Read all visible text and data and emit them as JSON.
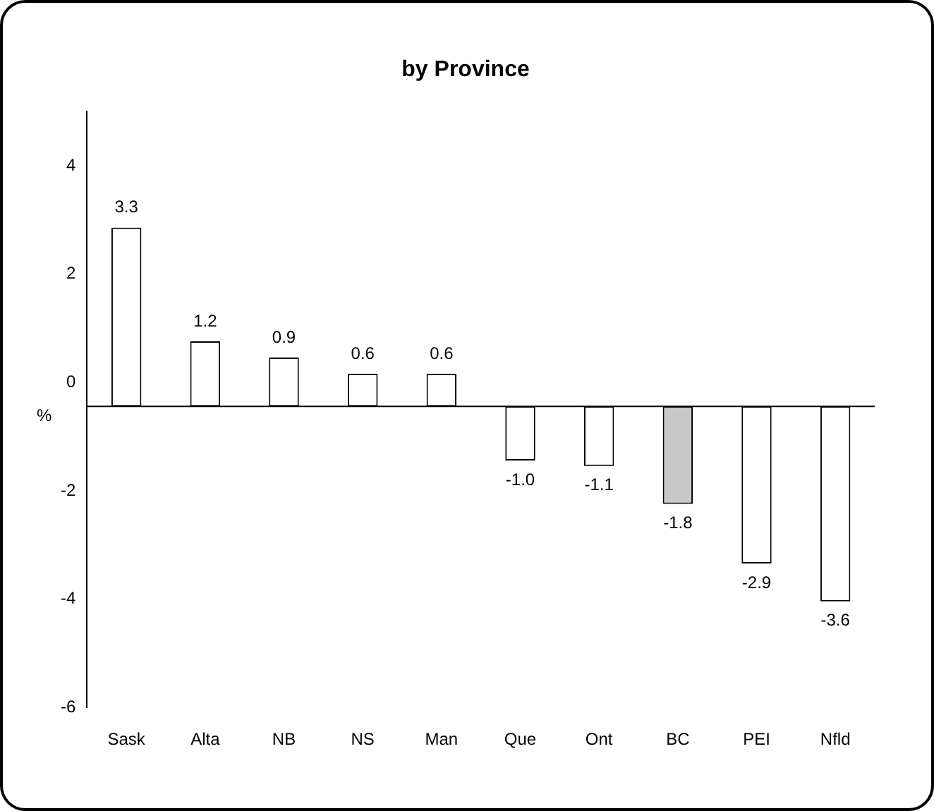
{
  "chart_data": {
    "type": "bar",
    "title": "by Province",
    "ylabel": "%",
    "categories": [
      "Sask",
      "Alta",
      "NB",
      "NS",
      "Man",
      "Que",
      "Ont",
      "BC",
      "PEI",
      "Nfld"
    ],
    "values": [
      3.3,
      1.2,
      0.9,
      0.6,
      0.6,
      -1.0,
      -1.1,
      -1.8,
      -2.9,
      -3.6
    ],
    "value_labels": [
      "3.3",
      "1.2",
      "0.9",
      "0.6",
      "0.6",
      "-1.0",
      "-1.1",
      "-1.8",
      "-2.9",
      "-3.6"
    ],
    "base": [
      -0.44,
      -0.44,
      -0.44,
      -0.44,
      -0.44,
      -0.44,
      -0.44,
      -0.44,
      -0.44,
      -0.44
    ],
    "colors": [
      "#ffffff",
      "#ffffff",
      "#ffffff",
      "#ffffff",
      "#ffffff",
      "#ffffff",
      "#ffffff",
      "#c8c8c8",
      "#ffffff",
      "#ffffff"
    ],
    "ylim": [
      -6,
      5
    ],
    "yticks": [
      -6,
      -4,
      -2,
      0,
      2,
      4
    ],
    "ref_lines": [
      {
        "axis": "y",
        "value": -0.44,
        "color": "#000000"
      }
    ],
    "grid": false,
    "legend": false
  }
}
